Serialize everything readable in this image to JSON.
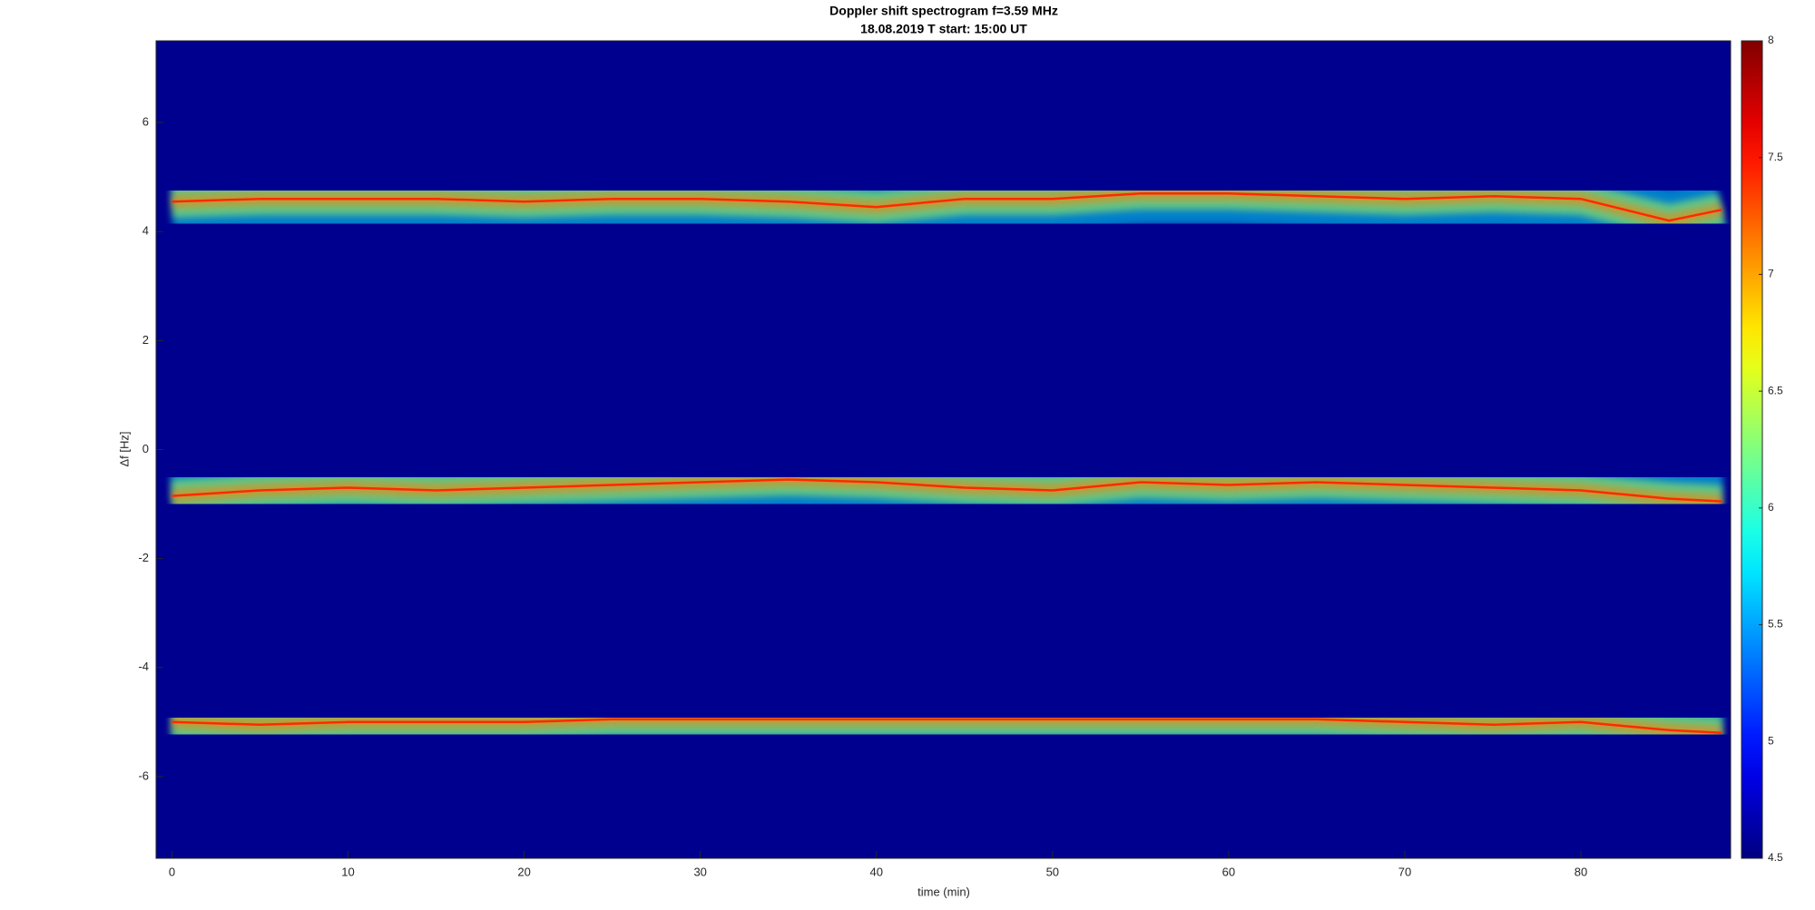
{
  "chart_data": {
    "type": "spectrogram",
    "title": "Doppler shift spectrogram f=3.59 MHz",
    "subtitle": "18.08.2019   T start: 15:00 UT",
    "x_label": "time (min)",
    "y_label": "Δf [Hz]",
    "xlim": [
      -0.9,
      88.5
    ],
    "ylim": [
      -7.5,
      7.5
    ],
    "xticks": [
      0,
      10,
      20,
      30,
      40,
      50,
      60,
      70,
      80
    ],
    "yticks": [
      -6,
      -4,
      -2,
      0,
      2,
      4,
      6
    ],
    "colormap": "jet",
    "clim": [
      4.5,
      8
    ],
    "cticks": [
      4.5,
      5,
      5.5,
      6,
      6.5,
      7,
      7.5,
      8
    ],
    "background": "#00008f",
    "x": [
      0,
      5,
      10,
      15,
      20,
      25,
      30,
      35,
      40,
      45,
      50,
      55,
      60,
      65,
      70,
      75,
      80,
      85,
      88
    ],
    "series": [
      {
        "color": "#ff2a00",
        "values": [
          4.55,
          4.6,
          4.6,
          4.6,
          4.55,
          4.6,
          4.6,
          4.55,
          4.45,
          4.6,
          4.6,
          4.7,
          4.7,
          4.65,
          4.6,
          4.65,
          4.6,
          4.2,
          4.4
        ]
      },
      {
        "color": "#ff2a00",
        "values": [
          -0.85,
          -0.75,
          -0.7,
          -0.75,
          -0.7,
          -0.65,
          -0.6,
          -0.55,
          -0.6,
          -0.7,
          -0.75,
          -0.6,
          -0.65,
          -0.6,
          -0.65,
          -0.7,
          -0.75,
          -0.9,
          -0.95
        ]
      },
      {
        "color": "#ff2a00",
        "values": [
          -5.0,
          -5.05,
          -5.0,
          -5.0,
          -5.0,
          -4.95,
          -4.95,
          -4.95,
          -4.95,
          -4.95,
          -4.95,
          -4.95,
          -4.95,
          -4.95,
          -5.0,
          -5.05,
          -5.0,
          -5.15,
          -5.2
        ]
      }
    ]
  }
}
